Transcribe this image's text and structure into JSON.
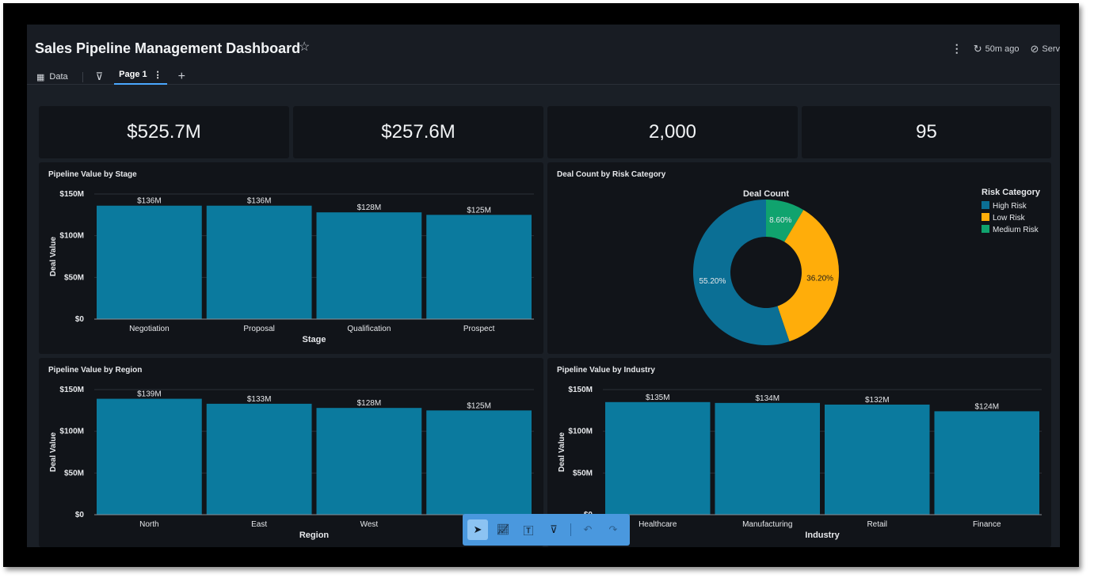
{
  "header": {
    "title": "Sales Pipeline Management Dashboard",
    "refresh_label": "50m ago",
    "server_label": "Serv",
    "tabs": {
      "data_label": "Data",
      "page_label": "Page 1"
    },
    "icons": {
      "star": "star-icon",
      "more": "more-vertical-icon",
      "refresh": "refresh-icon",
      "server": "server-icon",
      "table": "table-icon",
      "filter": "filter-icon",
      "add": "plus-icon"
    }
  },
  "kpis": [
    {
      "value": "$525.7M"
    },
    {
      "value": "$257.6M"
    },
    {
      "value": "2,000"
    },
    {
      "value": "95"
    }
  ],
  "panels": {
    "stage": {
      "title": "Pipeline Value by Stage"
    },
    "risk": {
      "title": "Deal Count by Risk Category"
    },
    "region": {
      "title": "Pipeline Value by Region"
    },
    "industry": {
      "title": "Pipeline Value by Industry"
    }
  },
  "toolbar": {
    "icons": [
      "pointer-icon",
      "line-chart-icon",
      "text-icon",
      "filter-icon",
      "undo-icon",
      "redo-icon"
    ]
  },
  "chart_data": [
    {
      "id": "stage",
      "type": "bar",
      "title": "Pipeline Value by Stage",
      "xlabel": "Stage",
      "ylabel": "Deal Value",
      "categories": [
        "Negotiation",
        "Proposal",
        "Qualification",
        "Prospect"
      ],
      "values": [
        136,
        136,
        128,
        125
      ],
      "data_labels": [
        "$136M",
        "$136M",
        "$128M",
        "$125M"
      ],
      "yticks": [
        0,
        50,
        100,
        150
      ],
      "ytick_labels": [
        "$0",
        "$50M",
        "$100M",
        "$150M"
      ],
      "ylim": [
        0,
        150
      ],
      "color": "#0b7a9e"
    },
    {
      "id": "risk",
      "type": "pie",
      "title": "Deal Count by Risk Category",
      "subtitle": "Deal Count",
      "legend_title": "Risk Category",
      "legend_position": "top-right",
      "labels": [
        "High Risk",
        "Low Risk",
        "Medium Risk"
      ],
      "values": [
        55.2,
        36.2,
        8.6
      ],
      "value_labels": [
        "55.20%",
        "36.20%",
        "8.60%"
      ],
      "colors": [
        "#0b6f95",
        "#ffad0a",
        "#10a36e"
      ]
    },
    {
      "id": "region",
      "type": "bar",
      "title": "Pipeline Value by Region",
      "xlabel": "Region",
      "ylabel": "Deal Value",
      "categories": [
        "North",
        "East",
        "West",
        ""
      ],
      "values": [
        139,
        133,
        128,
        125
      ],
      "data_labels": [
        "$139M",
        "$133M",
        "$128M",
        "$125M"
      ],
      "yticks": [
        0,
        50,
        100,
        150
      ],
      "ytick_labels": [
        "$0",
        "$50M",
        "$100M",
        "$150M"
      ],
      "ylim": [
        0,
        150
      ],
      "color": "#0b7a9e"
    },
    {
      "id": "industry",
      "type": "bar",
      "title": "Pipeline Value by Industry",
      "xlabel": "Industry",
      "ylabel": "Deal Value",
      "categories": [
        "Healthcare",
        "Manufacturing",
        "Retail",
        "Finance"
      ],
      "values": [
        135,
        134,
        132,
        124
      ],
      "data_labels": [
        "$135M",
        "$134M",
        "$132M",
        "$124M"
      ],
      "yticks": [
        0,
        50,
        100,
        150
      ],
      "ytick_labels": [
        "$0",
        "$50M",
        "$100M",
        "$150M"
      ],
      "ylim": [
        0,
        150
      ],
      "color": "#0b7a9e"
    }
  ]
}
